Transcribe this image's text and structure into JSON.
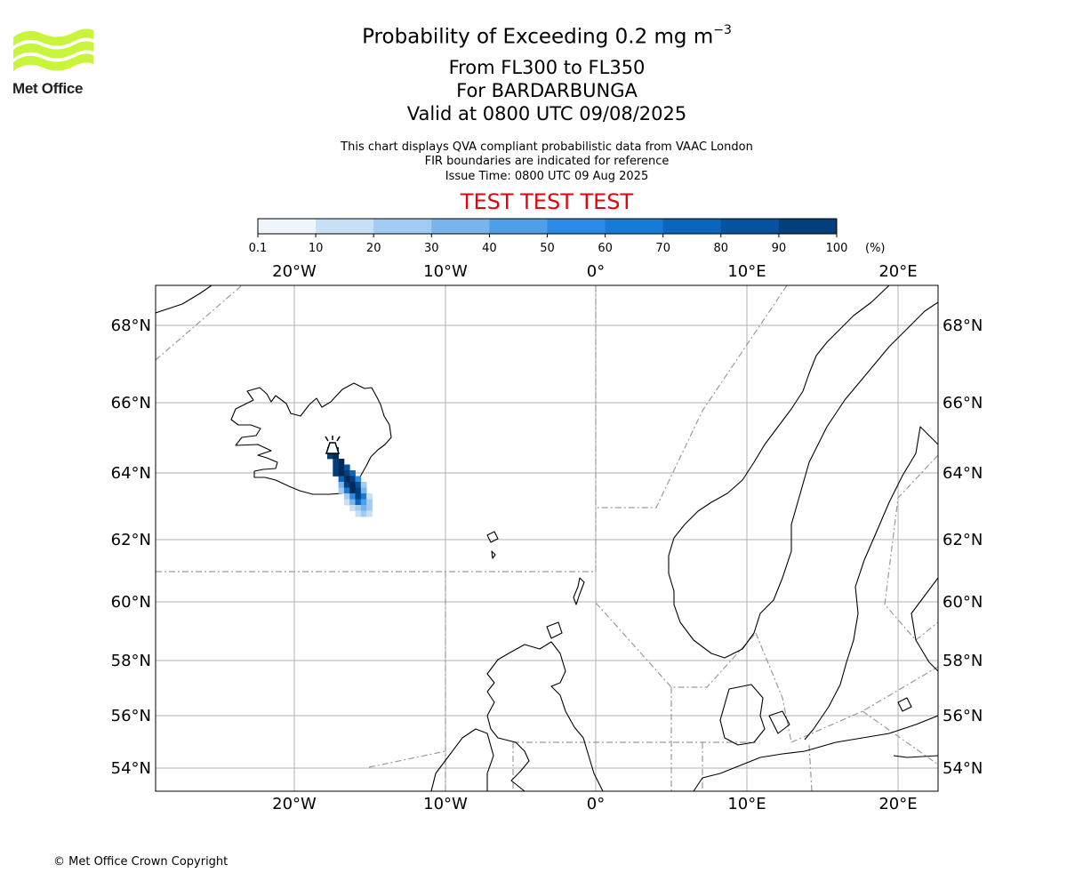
{
  "logo": {
    "text": "Met Office",
    "color": "#c8f53c"
  },
  "title": {
    "main": "Probability of Exceeding 0.2 mg m",
    "main_sup": "−3",
    "flight_levels": "From FL300 to FL350",
    "volcano": "For BARDARBUNGA",
    "valid": "Valid at 0800 UTC 09/08/2025"
  },
  "subtitle": {
    "line1": "This chart displays QVA compliant probabilistic data from VAAC London",
    "line2": "FIR boundaries are indicated for reference",
    "line3": "Issue Time: 0800 UTC 09 Aug 2025"
  },
  "test_banner": "TEST TEST TEST",
  "colorbar": {
    "ticks": [
      "0.1",
      "10",
      "20",
      "30",
      "40",
      "50",
      "60",
      "70",
      "80",
      "90",
      "100"
    ],
    "unit": "(%)",
    "colors": [
      "#eef5fc",
      "#c8e0f6",
      "#a2cbf1",
      "#79b4ec",
      "#4f9ee8",
      "#2b8ae3",
      "#157bd7",
      "#0a66bd",
      "#06529e",
      "#033f7b",
      "#012a57"
    ]
  },
  "map": {
    "lon_labels": [
      "20°W",
      "10°W",
      "0°",
      "10°E",
      "20°E"
    ],
    "lat_labels": [
      "68°N",
      "66°N",
      "64°N",
      "62°N",
      "60°N",
      "58°N",
      "56°N",
      "54°N"
    ],
    "volcano_name": "BARDARBUNGA"
  },
  "copyright": "© Met Office Crown Copyright"
}
